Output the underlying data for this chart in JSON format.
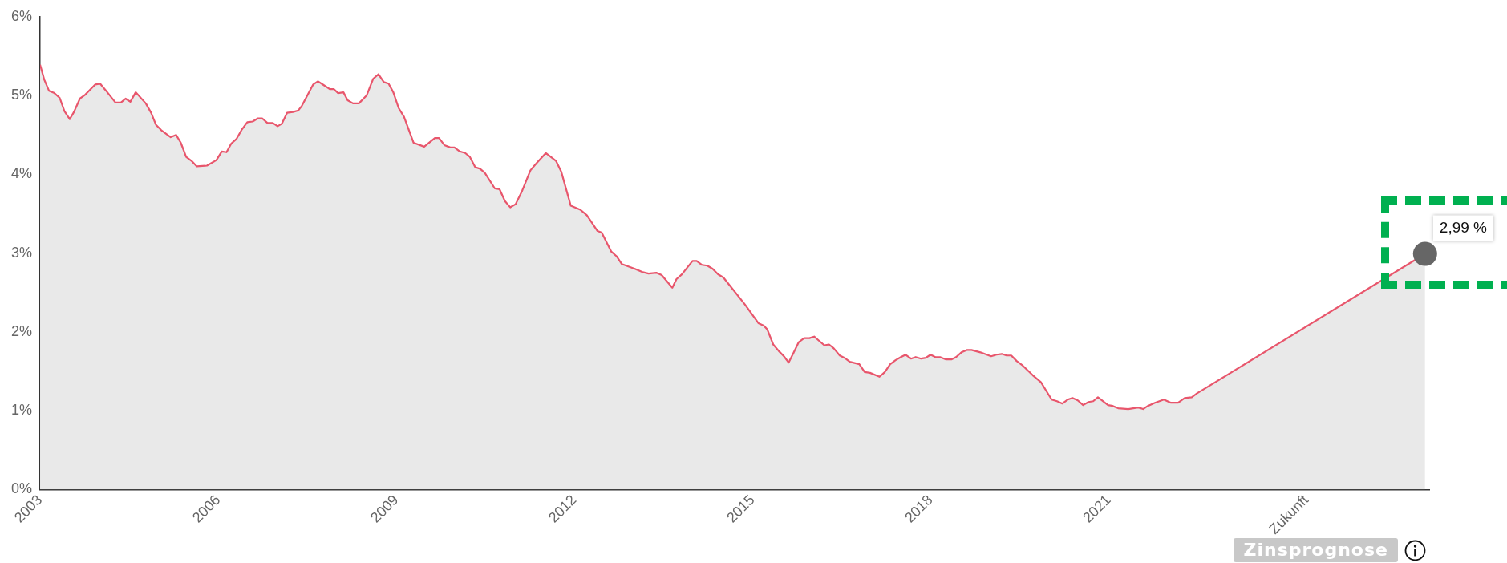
{
  "chart_data": {
    "type": "area",
    "xlim": [
      2003,
      2026.4
    ],
    "xticks": [
      2003,
      2006,
      2009,
      2012,
      2015,
      2018,
      2021,
      {
        "value": 2024.33,
        "label": "Zukunft"
      }
    ],
    "ylim": [
      0,
      6
    ],
    "yticks": [
      {
        "value": 0,
        "label": "0%"
      },
      {
        "value": 1,
        "label": "1%"
      },
      {
        "value": 2,
        "label": "2%"
      },
      {
        "value": 3,
        "label": "3%"
      },
      {
        "value": 4,
        "label": "4%"
      },
      {
        "value": 5,
        "label": "5%"
      },
      {
        "value": 6,
        "label": "6%"
      }
    ],
    "grid": false,
    "legend": false,
    "marker": "none",
    "line_style": "solid",
    "annotations": [
      {
        "text": "2,99 %",
        "x": 2026.33,
        "y": 2.99
      },
      "Zinsprognose"
    ],
    "series": [
      {
        "color": "#e8566c",
        "x": [
          2003.0,
          2003.07,
          2003.15,
          2003.24,
          2003.33,
          2003.41,
          2003.5,
          2003.57,
          2003.67,
          2003.76,
          2003.93,
          2004.01,
          2004.1,
          2004.27,
          2004.36,
          2004.44,
          2004.52,
          2004.61,
          2004.78,
          2004.87,
          2004.95,
          2005.04,
          2005.2,
          2005.29,
          2005.37,
          2005.46,
          2005.55,
          2005.64,
          2005.81,
          2005.97,
          2006.06,
          2006.14,
          2006.22,
          2006.31,
          2006.4,
          2006.49,
          2006.58,
          2006.67,
          2006.74,
          2006.83,
          2006.92,
          2007.0,
          2007.07,
          2007.16,
          2007.26,
          2007.35,
          2007.41,
          2007.6,
          2007.68,
          2007.78,
          2007.88,
          2007.95,
          2008.02,
          2008.11,
          2008.18,
          2008.27,
          2008.37,
          2008.5,
          2008.61,
          2008.7,
          2008.79,
          2008.87,
          2008.95,
          2009.04,
          2009.13,
          2009.29,
          2009.47,
          2009.65,
          2009.72,
          2009.81,
          2009.91,
          2009.98,
          2010.07,
          2010.16,
          2010.24,
          2010.33,
          2010.41,
          2010.49,
          2010.66,
          2010.74,
          2010.83,
          2010.92,
          2011.01,
          2011.12,
          2011.26,
          2011.35,
          2011.52,
          2011.69,
          2011.78,
          2011.94,
          2012.1,
          2012.21,
          2012.39,
          2012.46,
          2012.62,
          2012.71,
          2012.8,
          2013.02,
          2013.14,
          2013.25,
          2013.38,
          2013.47,
          2013.65,
          2013.72,
          2013.81,
          2013.99,
          2014.06,
          2014.15,
          2014.24,
          2014.33,
          2014.42,
          2014.51,
          2014.87,
          2015.1,
          2015.19,
          2015.25,
          2015.35,
          2015.44,
          2015.53,
          2015.61,
          2015.69,
          2015.78,
          2015.87,
          2015.96,
          2016.04,
          2016.21,
          2016.29,
          2016.37,
          2016.47,
          2016.55,
          2016.64,
          2016.8,
          2016.89,
          2016.98,
          2017.14,
          2017.23,
          2017.32,
          2017.41,
          2017.5,
          2017.58,
          2017.67,
          2017.75,
          2017.84,
          2017.92,
          2018.0,
          2018.08,
          2018.16,
          2018.26,
          2018.35,
          2018.43,
          2018.52,
          2018.61,
          2018.69,
          2018.84,
          2019.02,
          2019.11,
          2019.2,
          2019.28,
          2019.36,
          2019.45,
          2019.54,
          2019.72,
          2019.86,
          2019.95,
          2020.04,
          2020.13,
          2020.22,
          2020.31,
          2020.39,
          2020.48,
          2020.57,
          2020.66,
          2020.74,
          2020.82,
          2020.99,
          2021.07,
          2021.16,
          2021.33,
          2021.5,
          2021.58,
          2021.66,
          2021.78,
          2021.93,
          2022.05,
          2022.17,
          2022.28,
          2022.4,
          2022.49,
          2026.33
        ],
        "values": [
          5.39,
          5.2,
          5.06,
          5.03,
          4.97,
          4.8,
          4.7,
          4.79,
          4.96,
          5.01,
          5.14,
          5.15,
          5.07,
          4.91,
          4.91,
          4.96,
          4.92,
          5.04,
          4.9,
          4.78,
          4.63,
          4.56,
          4.47,
          4.5,
          4.4,
          4.22,
          4.17,
          4.1,
          4.11,
          4.18,
          4.29,
          4.28,
          4.39,
          4.45,
          4.57,
          4.66,
          4.67,
          4.71,
          4.71,
          4.65,
          4.65,
          4.61,
          4.64,
          4.78,
          4.79,
          4.81,
          4.87,
          5.14,
          5.18,
          5.13,
          5.08,
          5.08,
          5.03,
          5.04,
          4.94,
          4.9,
          4.9,
          5.0,
          5.21,
          5.27,
          5.17,
          5.15,
          5.04,
          4.84,
          4.73,
          4.4,
          4.35,
          4.46,
          4.46,
          4.37,
          4.34,
          4.34,
          4.29,
          4.27,
          4.22,
          4.09,
          4.07,
          4.02,
          3.82,
          3.81,
          3.66,
          3.58,
          3.62,
          3.79,
          4.05,
          4.13,
          4.27,
          4.17,
          4.03,
          3.6,
          3.55,
          3.48,
          3.28,
          3.26,
          3.02,
          2.96,
          2.86,
          2.8,
          2.76,
          2.74,
          2.75,
          2.72,
          2.56,
          2.67,
          2.73,
          2.9,
          2.9,
          2.85,
          2.84,
          2.8,
          2.73,
          2.69,
          2.35,
          2.11,
          2.08,
          2.03,
          1.84,
          1.76,
          1.69,
          1.61,
          1.73,
          1.87,
          1.92,
          1.92,
          1.94,
          1.83,
          1.84,
          1.79,
          1.7,
          1.67,
          1.62,
          1.59,
          1.49,
          1.48,
          1.43,
          1.49,
          1.59,
          1.64,
          1.68,
          1.71,
          1.66,
          1.68,
          1.66,
          1.67,
          1.71,
          1.68,
          1.68,
          1.65,
          1.65,
          1.68,
          1.74,
          1.77,
          1.77,
          1.74,
          1.69,
          1.71,
          1.72,
          1.7,
          1.7,
          1.63,
          1.58,
          1.45,
          1.36,
          1.25,
          1.14,
          1.12,
          1.09,
          1.14,
          1.16,
          1.13,
          1.07,
          1.11,
          1.12,
          1.17,
          1.07,
          1.06,
          1.03,
          1.02,
          1.04,
          1.02,
          1.06,
          1.1,
          1.14,
          1.1,
          1.1,
          1.16,
          1.17,
          1.22,
          2.99
        ]
      }
    ]
  }
}
